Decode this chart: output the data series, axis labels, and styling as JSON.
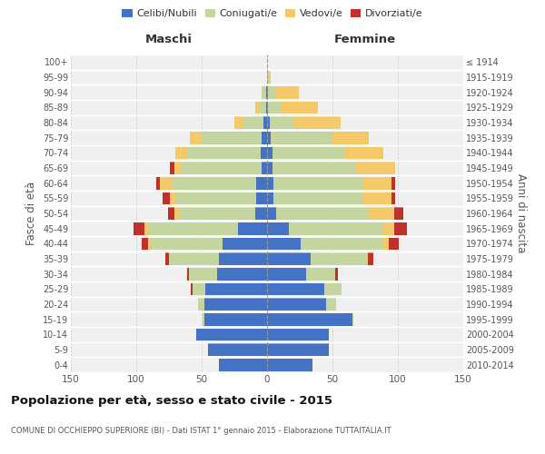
{
  "age_groups": [
    "0-4",
    "5-9",
    "10-14",
    "15-19",
    "20-24",
    "25-29",
    "30-34",
    "35-39",
    "40-44",
    "45-49",
    "50-54",
    "55-59",
    "60-64",
    "65-69",
    "70-74",
    "75-79",
    "80-84",
    "85-89",
    "90-94",
    "95-99",
    "100+"
  ],
  "birth_years": [
    "2010-2014",
    "2005-2009",
    "2000-2004",
    "1995-1999",
    "1990-1994",
    "1985-1989",
    "1980-1984",
    "1975-1979",
    "1970-1974",
    "1965-1969",
    "1960-1964",
    "1955-1959",
    "1950-1954",
    "1945-1949",
    "1940-1944",
    "1935-1939",
    "1930-1934",
    "1925-1929",
    "1920-1924",
    "1915-1919",
    "≤ 1914"
  ],
  "males": {
    "celibi": [
      37,
      45,
      54,
      48,
      48,
      47,
      38,
      37,
      34,
      22,
      9,
      8,
      8,
      4,
      5,
      4,
      3,
      1,
      1,
      0,
      0
    ],
    "coniugati": [
      0,
      0,
      0,
      1,
      5,
      10,
      22,
      38,
      55,
      68,
      58,
      62,
      65,
      62,
      57,
      47,
      16,
      5,
      3,
      0,
      0
    ],
    "vedovi": [
      0,
      0,
      0,
      0,
      0,
      0,
      0,
      0,
      2,
      4,
      4,
      4,
      9,
      5,
      8,
      8,
      6,
      3,
      0,
      0,
      0
    ],
    "divorziati": [
      0,
      0,
      0,
      0,
      0,
      1,
      1,
      3,
      5,
      8,
      5,
      6,
      3,
      3,
      0,
      0,
      0,
      0,
      0,
      0,
      0
    ]
  },
  "females": {
    "nubili": [
      35,
      47,
      47,
      65,
      45,
      44,
      30,
      33,
      26,
      17,
      7,
      5,
      5,
      4,
      4,
      3,
      2,
      1,
      1,
      0,
      0
    ],
    "coniugate": [
      0,
      0,
      0,
      1,
      8,
      13,
      22,
      43,
      63,
      72,
      70,
      68,
      68,
      64,
      55,
      47,
      18,
      10,
      5,
      1,
      0
    ],
    "vedove": [
      0,
      0,
      0,
      0,
      0,
      0,
      0,
      1,
      4,
      8,
      20,
      22,
      22,
      30,
      30,
      28,
      36,
      28,
      18,
      2,
      0
    ],
    "divorziate": [
      0,
      0,
      0,
      0,
      0,
      0,
      2,
      4,
      8,
      10,
      7,
      3,
      3,
      0,
      0,
      0,
      0,
      0,
      0,
      0,
      0
    ]
  },
  "colors": {
    "celibi_nubili": "#4472c4",
    "coniugati": "#c5d5a0",
    "vedovi": "#f4c96a",
    "divorziati": "#c0312b"
  },
  "xlim": 150,
  "title": "Popolazione per età, sesso e stato civile - 2015",
  "subtitle": "COMUNE DI OCCHIEPPO SUPERIORE (BI) - Dati ISTAT 1° gennaio 2015 - Elaborazione TUTTAITALIA.IT",
  "ylabel_left": "Fasce di età",
  "ylabel_right": "Anni di nascita",
  "xlabel_maschi": "Maschi",
  "xlabel_femmine": "Femmine",
  "bg_color": "#f0f0f0",
  "grid_color": "#cccccc"
}
